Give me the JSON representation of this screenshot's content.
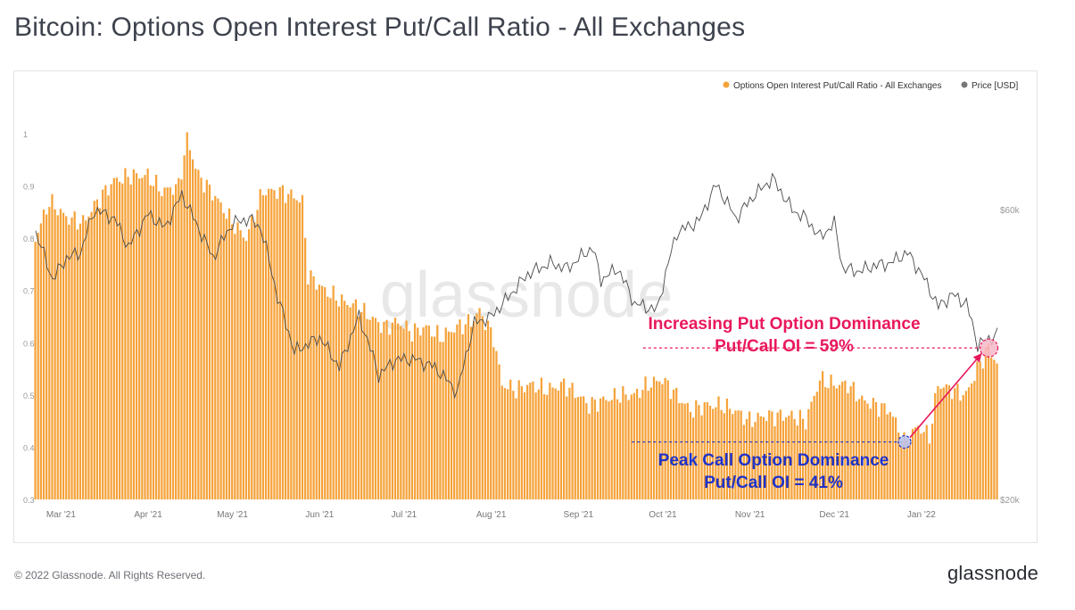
{
  "title": "Bitcoin: Options Open Interest Put/Call Ratio - All Exchanges",
  "footer": {
    "copyright": "© 2022 Glassnode. All Rights Reserved.",
    "logo": "glassnode"
  },
  "watermark": "glassnode",
  "colors": {
    "ratio_bars": "#f5a23a",
    "price_line": "#4a4a4a",
    "put_annotation": "#e8185c",
    "call_annotation": "#1f33c8"
  },
  "chart_data": {
    "type": "bar",
    "legend": {
      "placement": "top-right",
      "items": [
        {
          "label": "Options Open Interest Put/Call Ratio - All Exchanges",
          "color": "#f5a23a"
        },
        {
          "label": "Price [USD]",
          "color": "#777777"
        }
      ]
    },
    "x_range": [
      "2021-02-20",
      "2022-01-28"
    ],
    "x_ticks": [
      {
        "label": "Mar '21",
        "date": "2021-03-01"
      },
      {
        "label": "Apr '21",
        "date": "2021-04-01"
      },
      {
        "label": "May '21",
        "date": "2021-05-01"
      },
      {
        "label": "Jun '21",
        "date": "2021-06-01"
      },
      {
        "label": "Jul '21",
        "date": "2021-07-01"
      },
      {
        "label": "Aug '21",
        "date": "2021-08-01"
      },
      {
        "label": "Sep '21",
        "date": "2021-09-01"
      },
      {
        "label": "Oct '21",
        "date": "2021-10-01"
      },
      {
        "label": "Nov '21",
        "date": "2021-11-01"
      },
      {
        "label": "Dec '21",
        "date": "2021-12-01"
      },
      {
        "label": "Jan '22",
        "date": "2022-01-01"
      }
    ],
    "y_left": {
      "ylim": [
        0.3,
        1.0
      ],
      "ticks": [
        {
          "label": "0.3",
          "value": 0.3
        },
        {
          "label": "0.4",
          "value": 0.4
        },
        {
          "label": "0.5",
          "value": 0.5
        },
        {
          "label": "0.6",
          "value": 0.6
        },
        {
          "label": "0.7",
          "value": 0.7
        },
        {
          "label": "0.8",
          "value": 0.8
        },
        {
          "label": "0.9",
          "value": 0.9
        },
        {
          "label": "1",
          "value": 1.0
        }
      ]
    },
    "y_right": {
      "scale": "log",
      "ylim": [
        20000,
        80000
      ],
      "ticks": [
        {
          "label": "$20k",
          "value": 20000
        },
        {
          "label": "$60k",
          "value": 60000
        }
      ]
    },
    "series": [
      {
        "name": "Options Open Interest Put/Call Ratio - All Exchanges",
        "type": "bar",
        "axis": "left",
        "points": [
          [
            "2021-02-20",
            0.8
          ],
          [
            "2021-02-25",
            0.87
          ],
          [
            "2021-03-03",
            0.84
          ],
          [
            "2021-03-09",
            0.83
          ],
          [
            "2021-03-14",
            0.87
          ],
          [
            "2021-03-20",
            0.91
          ],
          [
            "2021-03-26",
            0.92
          ],
          [
            "2021-04-01",
            0.92
          ],
          [
            "2021-04-06",
            0.89
          ],
          [
            "2021-04-12",
            0.9
          ],
          [
            "2021-04-15",
            0.99
          ],
          [
            "2021-04-19",
            0.92
          ],
          [
            "2021-04-25",
            0.88
          ],
          [
            "2021-05-01",
            0.83
          ],
          [
            "2021-05-06",
            0.8
          ],
          [
            "2021-05-12",
            0.89
          ],
          [
            "2021-05-18",
            0.89
          ],
          [
            "2021-05-23",
            0.88
          ],
          [
            "2021-05-26",
            0.87
          ],
          [
            "2021-05-28",
            0.73
          ],
          [
            "2021-06-03",
            0.7
          ],
          [
            "2021-06-09",
            0.68
          ],
          [
            "2021-06-14",
            0.67
          ],
          [
            "2021-06-19",
            0.65
          ],
          [
            "2021-06-24",
            0.63
          ],
          [
            "2021-06-29",
            0.64
          ],
          [
            "2021-07-04",
            0.62
          ],
          [
            "2021-07-09",
            0.63
          ],
          [
            "2021-07-14",
            0.61
          ],
          [
            "2021-07-20",
            0.63
          ],
          [
            "2021-07-25",
            0.64
          ],
          [
            "2021-07-28",
            0.66
          ],
          [
            "2021-08-02",
            0.61
          ],
          [
            "2021-08-05",
            0.52
          ],
          [
            "2021-08-10",
            0.51
          ],
          [
            "2021-08-15",
            0.52
          ],
          [
            "2021-08-21",
            0.51
          ],
          [
            "2021-08-27",
            0.52
          ],
          [
            "2021-09-01",
            0.5
          ],
          [
            "2021-09-05",
            0.48
          ],
          [
            "2021-09-10",
            0.49
          ],
          [
            "2021-09-16",
            0.5
          ],
          [
            "2021-09-21",
            0.5
          ],
          [
            "2021-09-26",
            0.52
          ],
          [
            "2021-10-01",
            0.53
          ],
          [
            "2021-10-06",
            0.5
          ],
          [
            "2021-10-11",
            0.47
          ],
          [
            "2021-10-16",
            0.48
          ],
          [
            "2021-10-22",
            0.48
          ],
          [
            "2021-10-27",
            0.47
          ],
          [
            "2021-11-01",
            0.45
          ],
          [
            "2021-11-06",
            0.46
          ],
          [
            "2021-11-11",
            0.46
          ],
          [
            "2021-11-16",
            0.46
          ],
          [
            "2021-11-21",
            0.45
          ],
          [
            "2021-11-26",
            0.53
          ],
          [
            "2021-12-01",
            0.52
          ],
          [
            "2021-12-06",
            0.52
          ],
          [
            "2021-12-11",
            0.49
          ],
          [
            "2021-12-16",
            0.48
          ],
          [
            "2021-12-21",
            0.47
          ],
          [
            "2021-12-26",
            0.41
          ],
          [
            "2021-12-31",
            0.44
          ],
          [
            "2022-01-04",
            0.42
          ],
          [
            "2022-01-07",
            0.52
          ],
          [
            "2022-01-12",
            0.51
          ],
          [
            "2022-01-17",
            0.5
          ],
          [
            "2022-01-21",
            0.55
          ],
          [
            "2022-01-25",
            0.59
          ],
          [
            "2022-01-28",
            0.56
          ]
        ]
      },
      {
        "name": "Price [USD]",
        "type": "line",
        "axis": "right",
        "points": [
          [
            "2021-02-20",
            55000
          ],
          [
            "2021-02-26",
            46000
          ],
          [
            "2021-03-03",
            50000
          ],
          [
            "2021-03-08",
            51000
          ],
          [
            "2021-03-13",
            60000
          ],
          [
            "2021-03-20",
            58000
          ],
          [
            "2021-03-25",
            52000
          ],
          [
            "2021-04-01",
            59000
          ],
          [
            "2021-04-07",
            56000
          ],
          [
            "2021-04-13",
            63500
          ],
          [
            "2021-04-18",
            57000
          ],
          [
            "2021-04-24",
            50000
          ],
          [
            "2021-05-01",
            57000
          ],
          [
            "2021-05-07",
            58000
          ],
          [
            "2021-05-11",
            56000
          ],
          [
            "2021-05-17",
            43000
          ],
          [
            "2021-05-23",
            35000
          ],
          [
            "2021-06-01",
            37000
          ],
          [
            "2021-06-08",
            33000
          ],
          [
            "2021-06-15",
            40000
          ],
          [
            "2021-06-22",
            32000
          ],
          [
            "2021-06-28",
            34000
          ],
          [
            "2021-07-05",
            34000
          ],
          [
            "2021-07-12",
            33000
          ],
          [
            "2021-07-20",
            30000
          ],
          [
            "2021-07-26",
            39000
          ],
          [
            "2021-08-01",
            40000
          ],
          [
            "2021-08-07",
            43000
          ],
          [
            "2021-08-14",
            47000
          ],
          [
            "2021-08-22",
            49000
          ],
          [
            "2021-08-28",
            48000
          ],
          [
            "2021-09-06",
            52000
          ],
          [
            "2021-09-09",
            46000
          ],
          [
            "2021-09-15",
            48000
          ],
          [
            "2021-09-21",
            42000
          ],
          [
            "2021-09-29",
            41000
          ],
          [
            "2021-10-06",
            55000
          ],
          [
            "2021-10-14",
            57500
          ],
          [
            "2021-10-20",
            66000
          ],
          [
            "2021-10-27",
            58000
          ],
          [
            "2021-11-02",
            63000
          ],
          [
            "2021-11-09",
            67500
          ],
          [
            "2021-11-16",
            60000
          ],
          [
            "2021-11-21",
            58000
          ],
          [
            "2021-11-26",
            54000
          ],
          [
            "2021-12-01",
            57000
          ],
          [
            "2021-12-04",
            48000
          ],
          [
            "2021-12-10",
            47500
          ],
          [
            "2021-12-15",
            48500
          ],
          [
            "2021-12-21",
            49000
          ],
          [
            "2021-12-27",
            51000
          ],
          [
            "2022-01-01",
            47000
          ],
          [
            "2022-01-07",
            41500
          ],
          [
            "2022-01-12",
            43500
          ],
          [
            "2022-01-17",
            42000
          ],
          [
            "2022-01-21",
            36000
          ],
          [
            "2022-01-24",
            36500
          ],
          [
            "2022-01-28",
            37500
          ]
        ]
      }
    ],
    "annotations": [
      {
        "text_line1": "Increasing Put Option Dominance",
        "text_line2": "Put/Call OI = 59%",
        "color": "#e8185c",
        "date": "2022-01-25",
        "value": 0.59,
        "line_from_date": "2021-09-24"
      },
      {
        "text_line1": "Peak Call Option Dominance",
        "text_line2": "Put/Call OI = 41%",
        "color": "#1f33c8",
        "date": "2021-12-26",
        "value": 0.41,
        "line_from_date": "2021-09-20"
      }
    ]
  }
}
